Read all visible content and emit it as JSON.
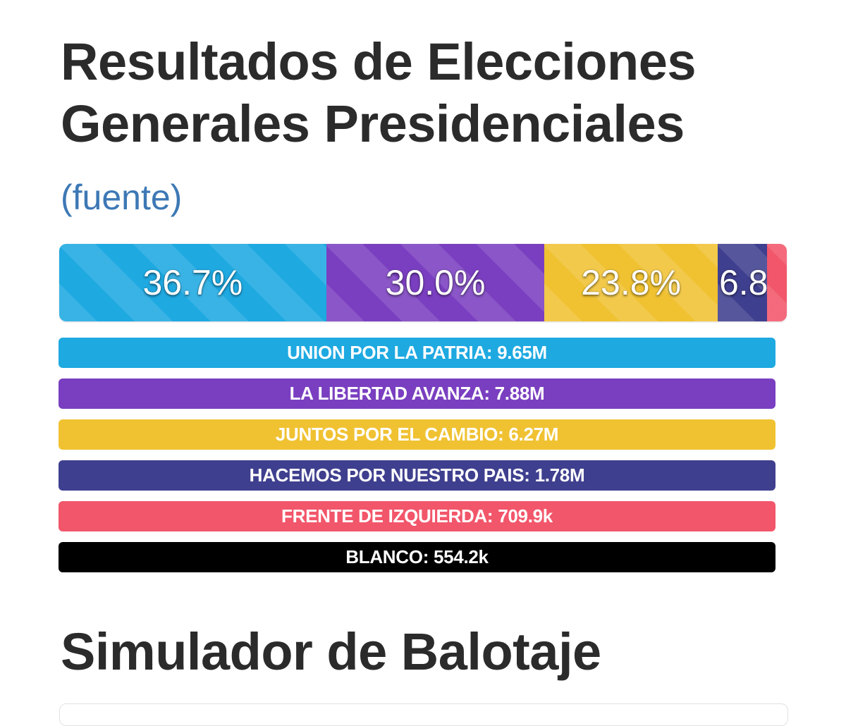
{
  "page": {
    "title_line1": "Resultados de Elecciones",
    "title_line2": "Generales Presidenciales",
    "source_link": "(fuente)",
    "section_title": "Simulador de Balotaje"
  },
  "results_bar": [
    {
      "percent_label": "36.7%",
      "share": 36.7,
      "color": "#1ea9e1"
    },
    {
      "percent_label": "30.0%",
      "share": 30.0,
      "color": "#7a3fc0"
    },
    {
      "percent_label": "23.8%",
      "share": 23.8,
      "color": "#f0c232"
    },
    {
      "percent_label": "6.8",
      "share": 6.8,
      "color": "#3f3f8f"
    },
    {
      "percent_label": "",
      "share": 2.7,
      "color": "#f2566a"
    }
  ],
  "legend": [
    {
      "name": "UNION POR LA PATRIA",
      "votes": "9.65M",
      "color": "#1ea9e1"
    },
    {
      "name": "LA LIBERTAD AVANZA",
      "votes": "7.88M",
      "color": "#7a3fc0"
    },
    {
      "name": "JUNTOS POR EL CAMBIO",
      "votes": "6.27M",
      "color": "#f0c232"
    },
    {
      "name": "HACEMOS POR NUESTRO PAIS",
      "votes": "1.78M",
      "color": "#3f3f8f"
    },
    {
      "name": "FRENTE DE IZQUIERDA",
      "votes": "709.9k",
      "color": "#f2566a"
    },
    {
      "name": "BLANCO",
      "votes": "554.2k",
      "color": "#000000"
    }
  ]
}
